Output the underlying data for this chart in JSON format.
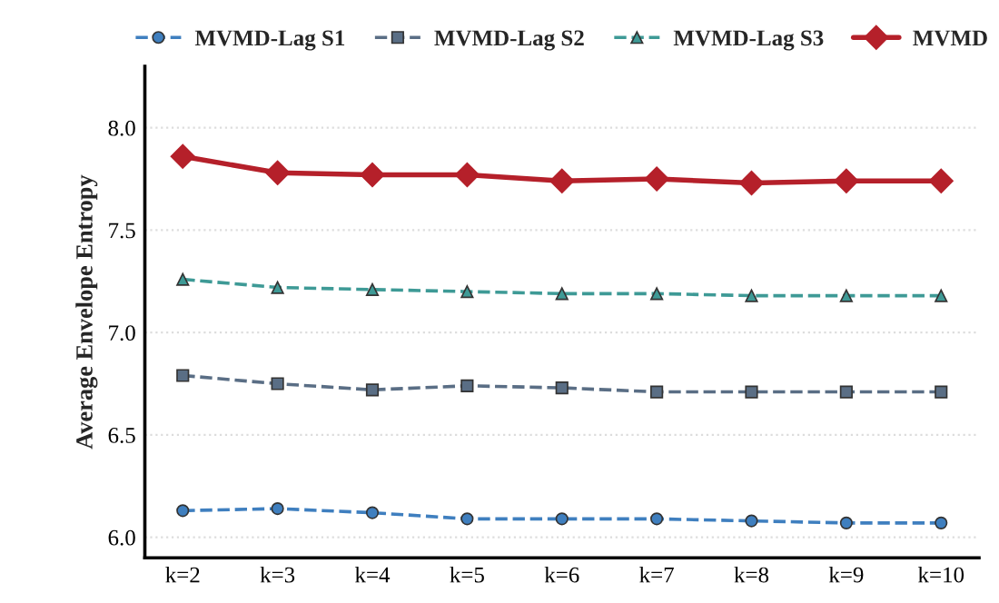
{
  "chart_data": {
    "type": "line",
    "ylabel": "Average Envelope Entropy",
    "categories": [
      "k=2",
      "k=3",
      "k=4",
      "k=5",
      "k=6",
      "k=7",
      "k=8",
      "k=9",
      "k=10"
    ],
    "series": [
      {
        "name": "MVMD-Lag S1",
        "color": "#3f7fbf",
        "marker": "circle",
        "line_style": "dashed",
        "values": [
          6.13,
          6.14,
          6.12,
          6.09,
          6.09,
          6.09,
          6.08,
          6.07,
          6.07
        ]
      },
      {
        "name": "MVMD-Lag S2",
        "color": "#5a6e85",
        "marker": "square",
        "line_style": "dashed",
        "values": [
          6.79,
          6.75,
          6.72,
          6.74,
          6.73,
          6.71,
          6.71,
          6.71,
          6.71
        ]
      },
      {
        "name": "MVMD-Lag S3",
        "color": "#3e9a96",
        "marker": "triangle",
        "line_style": "dashed",
        "values": [
          7.26,
          7.22,
          7.21,
          7.2,
          7.19,
          7.19,
          7.18,
          7.18,
          7.18
        ]
      },
      {
        "name": "MVMD",
        "color": "#b5202a",
        "marker": "diamond",
        "line_style": "solid",
        "values": [
          7.86,
          7.78,
          7.77,
          7.77,
          7.74,
          7.75,
          7.73,
          7.74,
          7.74
        ]
      }
    ],
    "ylim": [
      5.9,
      8.3
    ],
    "yticks": [
      {
        "value": 6,
        "label": "6.0"
      },
      6.5,
      {
        "value": 7,
        "label": "7.0"
      },
      7.5,
      {
        "value": 8,
        "label": "8.0"
      }
    ],
    "grid": "y",
    "legend": "top"
  }
}
